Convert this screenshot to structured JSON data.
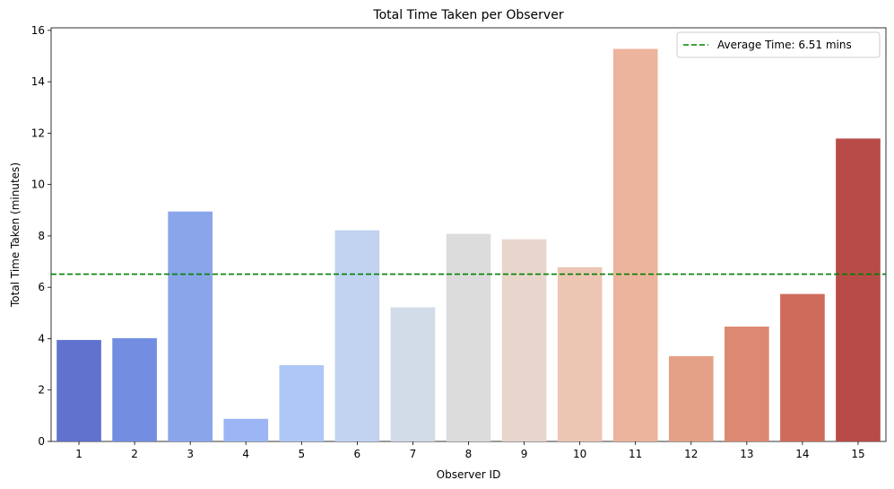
{
  "chart_data": {
    "type": "bar",
    "title": "Total Time Taken per Observer",
    "xlabel": "Observer ID",
    "ylabel": "Total Time Taken (minutes)",
    "categories": [
      "1",
      "2",
      "3",
      "4",
      "5",
      "6",
      "7",
      "8",
      "9",
      "10",
      "11",
      "12",
      "13",
      "14",
      "15"
    ],
    "values": [
      3.95,
      4.02,
      8.95,
      0.88,
      2.97,
      8.22,
      5.22,
      8.08,
      7.87,
      6.78,
      15.28,
      3.32,
      4.47,
      5.74,
      11.79
    ],
    "ylim": [
      0,
      16.1
    ],
    "yticks": [
      "0",
      "2",
      "4",
      "6",
      "8",
      "10",
      "12",
      "14",
      "16"
    ],
    "colors": [
      "#6072cd",
      "#738ee0",
      "#8aa5ea",
      "#9cb5f5",
      "#aec7f7",
      "#c1d3f1",
      "#d2dbe8",
      "#dcdcdd",
      "#e8d6cd",
      "#ecc5b3",
      "#ecb49c",
      "#e4a086",
      "#dd8872",
      "#cf6b5b",
      "#b84b47"
    ],
    "average": {
      "value": 6.51,
      "color": "#008000",
      "label": "Average Time: 6.51 mins"
    },
    "grid": false,
    "legend_position": "top-right"
  }
}
